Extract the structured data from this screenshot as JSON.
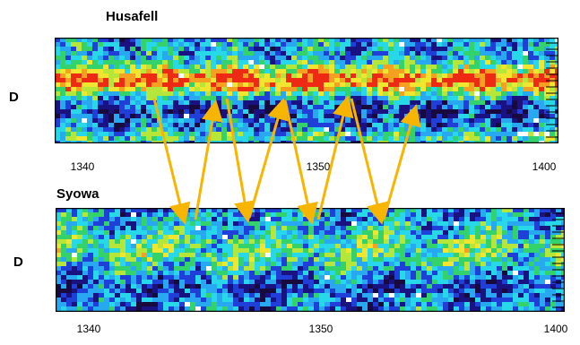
{
  "titles": {
    "top": "Husafell",
    "bottom": "Syowa"
  },
  "side_labels": {
    "top": "D",
    "bottom": "D"
  },
  "top_axis": {
    "ticks": [
      "1340",
      "1350",
      "1400"
    ]
  },
  "bottom_axis": {
    "ticks": [
      "1340",
      "1350",
      "1400"
    ]
  },
  "colors": {
    "arrow": "#f7b500",
    "palette": [
      "#180a3c",
      "#1a1280",
      "#1f3fd8",
      "#28a8f0",
      "#27d8e8",
      "#34d26a",
      "#b7e63a",
      "#f0e630",
      "#f5a020",
      "#ef2a14",
      "#ffffff"
    ]
  }
}
